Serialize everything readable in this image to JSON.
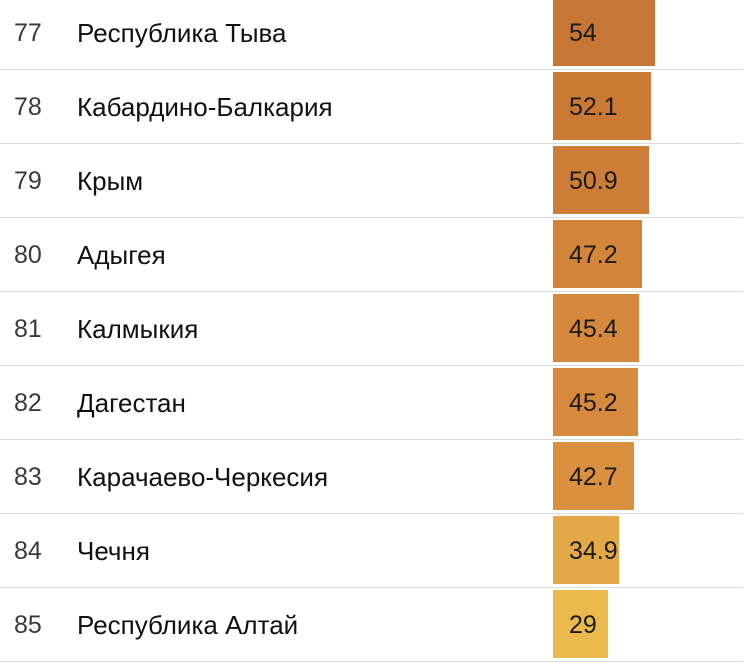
{
  "chart_data": {
    "type": "table",
    "title": "",
    "rows": [
      {
        "rank": "77",
        "region": "Республика Тыва",
        "value": 54,
        "label": "54",
        "color": "#c87635"
      },
      {
        "rank": "78",
        "region": "Кабардино-Балкария",
        "value": 52.1,
        "label": "52.1",
        "color": "#cb7a36"
      },
      {
        "rank": "79",
        "region": "Крым",
        "value": 50.9,
        "label": "50.9",
        "color": "#cd7d37"
      },
      {
        "rank": "80",
        "region": "Адыгея",
        "value": 47.2,
        "label": "47.2",
        "color": "#d3863a"
      },
      {
        "rank": "81",
        "region": "Калмыкия",
        "value": 45.4,
        "label": "45.4",
        "color": "#d6893c"
      },
      {
        "rank": "82",
        "region": "Дагестан",
        "value": 45.2,
        "label": "45.2",
        "color": "#d78a3d"
      },
      {
        "rank": "83",
        "region": "Карачаево-Черкесия",
        "value": 42.7,
        "label": "42.7",
        "color": "#da903f"
      },
      {
        "rank": "84",
        "region": "Чечня",
        "value": 34.9,
        "label": "34.9",
        "color": "#e5a847"
      },
      {
        "rank": "85",
        "region": "Республика Алтай",
        "value": 29,
        "label": "29",
        "color": "#ecba4c"
      }
    ]
  }
}
